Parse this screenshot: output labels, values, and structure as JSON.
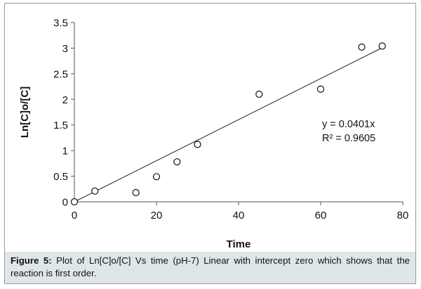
{
  "chart_data": {
    "type": "scatter",
    "xlabel": "Time",
    "ylabel": "Ln[C]o/[C]",
    "xlim": [
      0,
      80
    ],
    "ylim": [
      0,
      3.5
    ],
    "x_ticks": [
      "0",
      "20",
      "40",
      "60",
      "80"
    ],
    "y_ticks": [
      "0",
      "0.5",
      "1",
      "1.5",
      "2",
      "2.5",
      "3",
      "3.5"
    ],
    "grid": false,
    "legend": "none",
    "series": [
      {
        "x": [
          0,
          5,
          15,
          20,
          25,
          30,
          45,
          60,
          70,
          75
        ],
        "y": [
          0,
          0.21,
          0.18,
          0.49,
          0.78,
          1.12,
          2.1,
          2.2,
          3.02,
          3.04
        ]
      }
    ],
    "trendline": {
      "slope": 0.0401,
      "intercept": 0,
      "x_range": [
        0,
        75
      ],
      "equation": "y = 0.0401x",
      "r_squared": "R² = 0.9605"
    }
  },
  "caption": {
    "label": "Figure 5:",
    "text": " Plot of Ln[C]o/[C] Vs time (pH-7) Linear  with intercept zero which shows that the reaction is first order."
  },
  "colors": {
    "axis": "#555555",
    "trendline": "#222222",
    "marker": "#111111",
    "caption_background": "#dfe6ea",
    "frame": "#9a9a9a"
  }
}
